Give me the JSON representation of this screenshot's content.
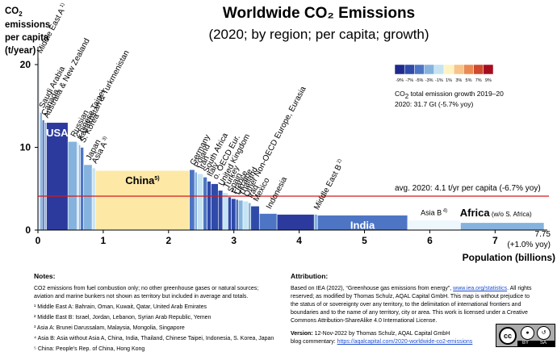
{
  "title": "Worldwide CO₂ Emissions",
  "subtitle": "(2020; by region; per capita; growth)",
  "y_axis_label": {
    "line1_prefix": "CO",
    "line1_sub": "2",
    "line1_suffix": " emissions",
    "line2": "per capita",
    "line3": "(t/year)"
  },
  "x_axis_label": "Population (billions)",
  "end_note": {
    "value": "7.75",
    "growth": "(+1.0% yoy)"
  },
  "avg_line_label": "avg. 2020: 4.1 t/yr per capita (-6.7% yoy)",
  "color_scale": {
    "ticks": [
      "-9%",
      "-7%",
      "-5%",
      "-3%",
      "-1%",
      "1%",
      "3%",
      "5%",
      "7%",
      "9%"
    ],
    "colors": [
      "#1f2a8c",
      "#2f4aa8",
      "#4d75c4",
      "#86b3de",
      "#c5e3f3",
      "#fff3c0",
      "#f8c48a",
      "#ea8a52",
      "#cf4a2e",
      "#a50d1f"
    ],
    "caption_line1_prefix": "CO",
    "caption_line1_sub": "2",
    "caption_line1_suffix": " total emission growth 2019–20",
    "caption_line2": "2020: 31.7 Gt (-5.7% yoy)"
  },
  "chart_data": {
    "type": "bar",
    "subtype": "variable-width",
    "title": "Worldwide CO₂ Emissions",
    "subtitle": "(2020; by region; per capita; growth)",
    "xlabel": "Population (billions)",
    "ylabel": "CO₂ emissions per capita (t/year)",
    "xlim": [
      0,
      7.75
    ],
    "ylim": [
      0,
      20
    ],
    "x_ticks": [
      0,
      1,
      2,
      3,
      4,
      5,
      6,
      7
    ],
    "y_ticks": [
      0,
      10,
      20
    ],
    "reference_line": {
      "value": 4.1,
      "color": "#d11a1a"
    },
    "regions": [
      {
        "label": "Middle East A",
        "note": "1)",
        "start": 0.0,
        "end": 0.03,
        "value": 20.8,
        "color": "#dfe9f2",
        "label_inside": false
      },
      {
        "label": "Saudi Arabia",
        "start": 0.03,
        "end": 0.065,
        "value": 14.2,
        "color": "#86b3de",
        "label_inside": false
      },
      {
        "label": "Canada",
        "start": 0.065,
        "end": 0.1,
        "value": 13.3,
        "color": "#4d75c4",
        "label_inside": false
      },
      {
        "label": "Australia & New Zealand",
        "start": 0.1,
        "end": 0.13,
        "value": 13.0,
        "color": "#86b3de",
        "label_inside": false
      },
      {
        "label": "USA",
        "start": 0.13,
        "end": 0.46,
        "value": 13.0,
        "color": "#2c3a9e",
        "label_inside": true
      },
      {
        "label": "Russian",
        "start": 0.46,
        "end": 0.6,
        "value": 10.7,
        "color": "#86b3de",
        "label_inside": false
      },
      {
        "label": "Chinese Taipei",
        "start": 0.6,
        "end": 0.625,
        "value": 10.6,
        "color": "#c5e3f3",
        "label_inside": false
      },
      {
        "label": "Kazakhstan & Turkmenistan",
        "start": 0.625,
        "end": 0.65,
        "value": 10.3,
        "color": "#86b3de",
        "label_inside": false
      },
      {
        "label": "S. Korea",
        "start": 0.65,
        "end": 0.7,
        "value": 10.0,
        "color": "#4d75c4",
        "label_inside": false
      },
      {
        "label": "Japan",
        "start": 0.7,
        "end": 0.83,
        "value": 7.9,
        "color": "#86b3de",
        "label_inside": false
      },
      {
        "label": "Asia A",
        "note": "3)",
        "start": 0.83,
        "end": 0.88,
        "value": 7.5,
        "color": "#c5e3f3",
        "label_inside": false
      },
      {
        "label": "China",
        "note": "5)",
        "start": 0.88,
        "end": 2.32,
        "value": 7.2,
        "color": "#fde8a6",
        "label_inside": true
      },
      {
        "label": "Germany",
        "start": 2.32,
        "end": 2.4,
        "value": 7.3,
        "color": "#4d75c4",
        "label_inside": false
      },
      {
        "label": "Poland",
        "start": 2.4,
        "end": 2.44,
        "value": 7.0,
        "color": "#86b3de",
        "label_inside": false
      },
      {
        "label": "Iran",
        "start": 2.44,
        "end": 2.53,
        "value": 6.8,
        "color": "#c5e3f3",
        "label_inside": false
      },
      {
        "label": "South Africa",
        "start": 2.53,
        "end": 2.59,
        "value": 6.4,
        "color": "#4d75c4",
        "label_inside": false
      },
      {
        "label": "Italy",
        "start": 2.59,
        "end": 2.65,
        "value": 5.9,
        "color": "#2f4aa8",
        "label_inside": false
      },
      {
        "label": "o. OECD Eur.",
        "start": 2.65,
        "end": 2.76,
        "value": 5.6,
        "color": "#2f4aa8",
        "label_inside": false
      },
      {
        "label": "United Kingdom",
        "start": 2.76,
        "end": 2.83,
        "value": 4.8,
        "color": "#2f4aa8",
        "label_inside": false
      },
      {
        "label": "Turkey",
        "start": 2.83,
        "end": 2.91,
        "value": 4.5,
        "color": "#c5e3f3",
        "label_inside": false
      },
      {
        "label": "Spain",
        "start": 2.91,
        "end": 2.96,
        "value": 4.0,
        "color": "#2f4aa8",
        "label_inside": false
      },
      {
        "label": "France",
        "start": 2.96,
        "end": 3.03,
        "value": 3.8,
        "color": "#2f4aa8",
        "label_inside": false
      },
      {
        "label": "Ukraine",
        "start": 3.03,
        "end": 3.07,
        "value": 3.7,
        "color": "#4d75c4",
        "label_inside": false
      },
      {
        "label": "Thailand",
        "start": 3.07,
        "end": 3.14,
        "value": 3.6,
        "color": "#86b3de",
        "label_inside": false
      },
      {
        "label": "Other Non-OECD Europe, Eurasia",
        "start": 3.14,
        "end": 3.22,
        "value": 3.5,
        "color": "#c5e3f3",
        "label_inside": false
      },
      {
        "label": "Iraq",
        "start": 3.22,
        "end": 3.26,
        "value": 3.3,
        "color": "#86b3de",
        "label_inside": false
      },
      {
        "label": "Mexico",
        "start": 3.26,
        "end": 3.39,
        "value": 2.9,
        "color": "#2f4aa8",
        "label_inside": false
      },
      {
        "label": "Indonesia",
        "start": 3.39,
        "end": 3.66,
        "value": 2.0,
        "color": "#4d75c4",
        "label_inside": false
      },
      {
        "label": "",
        "start": 3.66,
        "end": 4.23,
        "value": 1.9,
        "color": "#2c3a9e",
        "label_inside": false
      },
      {
        "label": "Middle East B",
        "note": "2)",
        "start": 4.23,
        "end": 4.28,
        "value": 1.9,
        "color": "#86b3de",
        "label_inside": false
      },
      {
        "label": "India",
        "start": 4.28,
        "end": 5.66,
        "value": 1.8,
        "color": "#4d75c4",
        "label_inside": true
      },
      {
        "label": "Asia B",
        "note": "4)",
        "start": 5.66,
        "end": 6.47,
        "value": 1.2,
        "color": "#eef7fc",
        "label_inside": false
      },
      {
        "label": "Africa",
        "label_suffix": "(w/o S. Africa)",
        "start": 6.47,
        "end": 7.75,
        "value": 0.9,
        "color": "#86b3de",
        "label_inside": false
      }
    ]
  },
  "notes": {
    "heading": "Notes:",
    "paragraphs": [
      "CO2 emissions from fuel combustion only; no other greenhouse gases or natural sources; aviation and marine bunkers not shown as territory but included in average and totals.",
      "¹ Middle East A: Bahrain, Oman, Kuwait, Qatar, United Arab Emirates",
      "² Middle East B: Israel, Jordan, Lebanon, Syrian Arab Republic, Yemen",
      "³ Asia A: Brunei Darussalam, Malaysia, Mongolia, Singapore",
      "⁴ Asia B: Asia without Asia A, China, India, Thailand, Chinese Taipei, Indonesia, S. Korea, Japan",
      "⁵ China: People's Rep. of China, Hong Kong"
    ]
  },
  "attribution": {
    "heading": "Attribution:",
    "source_prefix": "Based on IEA (2022), “Greenhouse gas emissions from energy”, ",
    "source_link": "www.iea.org/statistics",
    "source_suffix": ". All rights reserved; as modified by Thomas Schulz, AQAL Capital GmbH.",
    "disclaimer": "This map is without prejudice to the status of or sovereignty over any territory, to the delimitation of international frontiers and boundaries and to the name of any territory, city or area.",
    "license": "This work is licensed under a Creative Commons Attribution-ShareAlike 4.0 International License.",
    "version_label": "Version:",
    "version_text": " 12-Nov-2022 by Thomas Schulz, AQAL Capital GmbH",
    "blog_prefix": "blog commentary: ",
    "blog_link": "https://aqalcapital.com/2020-worldwide-co2-emissions"
  },
  "license_badge": {
    "cc": "cc",
    "by": "BY",
    "sa": "SA"
  }
}
